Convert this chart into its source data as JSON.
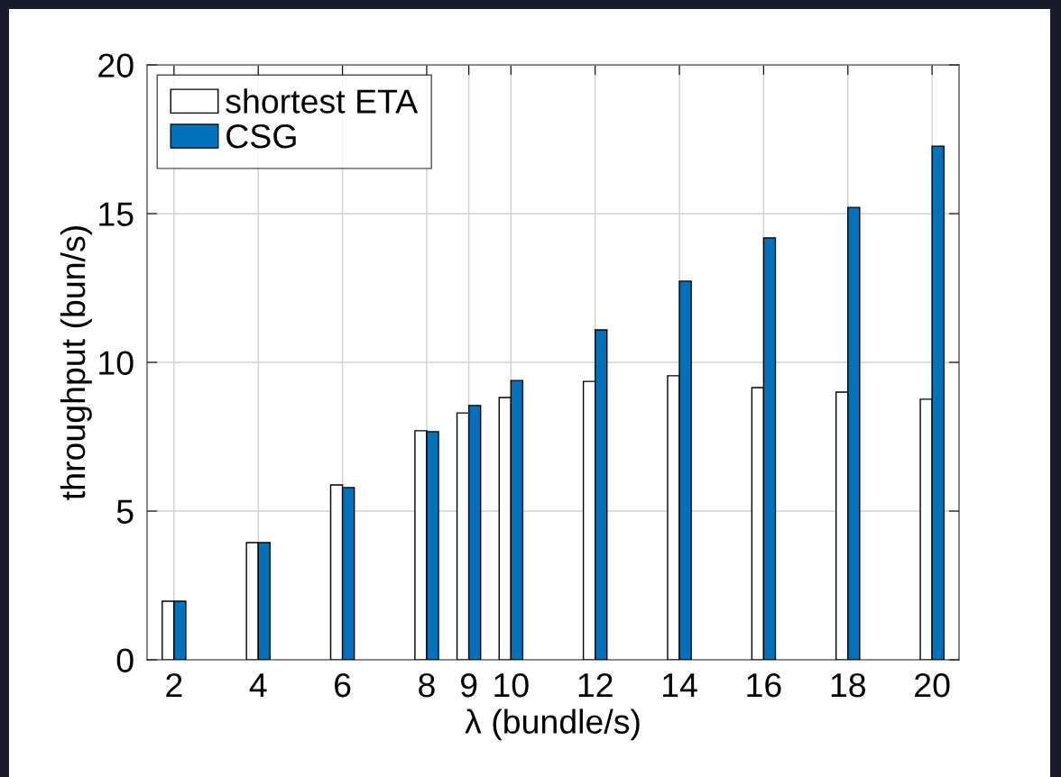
{
  "chart_data": {
    "type": "bar",
    "xlabel": "λ (bundle/s)",
    "ylabel": "throughput (bun/s)",
    "x": [
      2,
      4,
      6,
      8,
      9,
      10,
      12,
      14,
      16,
      18,
      20
    ],
    "series": [
      {
        "name": "shortest ETA",
        "color": "#ffffff",
        "values": [
          1.97,
          3.94,
          5.88,
          7.7,
          8.3,
          8.82,
          9.36,
          9.55,
          9.15,
          9.0,
          8.76
        ]
      },
      {
        "name": "CSG",
        "color": "#0072bd",
        "values": [
          1.97,
          3.94,
          5.79,
          7.67,
          8.55,
          9.39,
          11.09,
          12.73,
          14.18,
          15.21,
          17.27
        ]
      }
    ],
    "xlim": [
      1.36,
      20.64
    ],
    "xticks": [
      2,
      4,
      6,
      8,
      9,
      10,
      12,
      14,
      16,
      18,
      20
    ],
    "ylim": [
      0,
      20
    ],
    "yticks": [
      0,
      5,
      10,
      15,
      20
    ],
    "grid": true,
    "legend": "top left"
  }
}
